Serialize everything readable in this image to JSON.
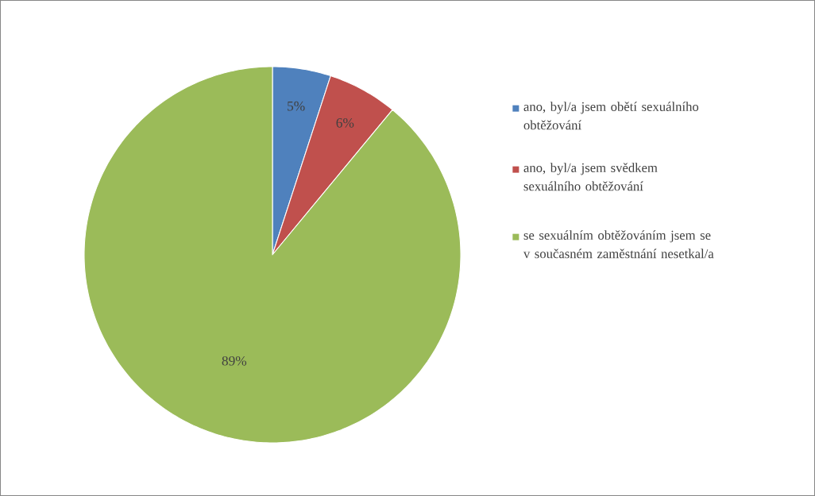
{
  "chart_data": {
    "type": "pie",
    "categories": [
      "ano, byl/a jsem obětí sexuálního obtěžování",
      "ano, byl/a jsem svědkem sexuálního obtěžování",
      "se sexuálním obtěžováním jsem se v současném zaměstnání nesetkal/a"
    ],
    "values": [
      5,
      6,
      89
    ],
    "colors": [
      "#4f81bd",
      "#c0504d",
      "#9bbb59"
    ],
    "value_labels": [
      "5%",
      "6%",
      "89%"
    ],
    "legend": "right"
  }
}
